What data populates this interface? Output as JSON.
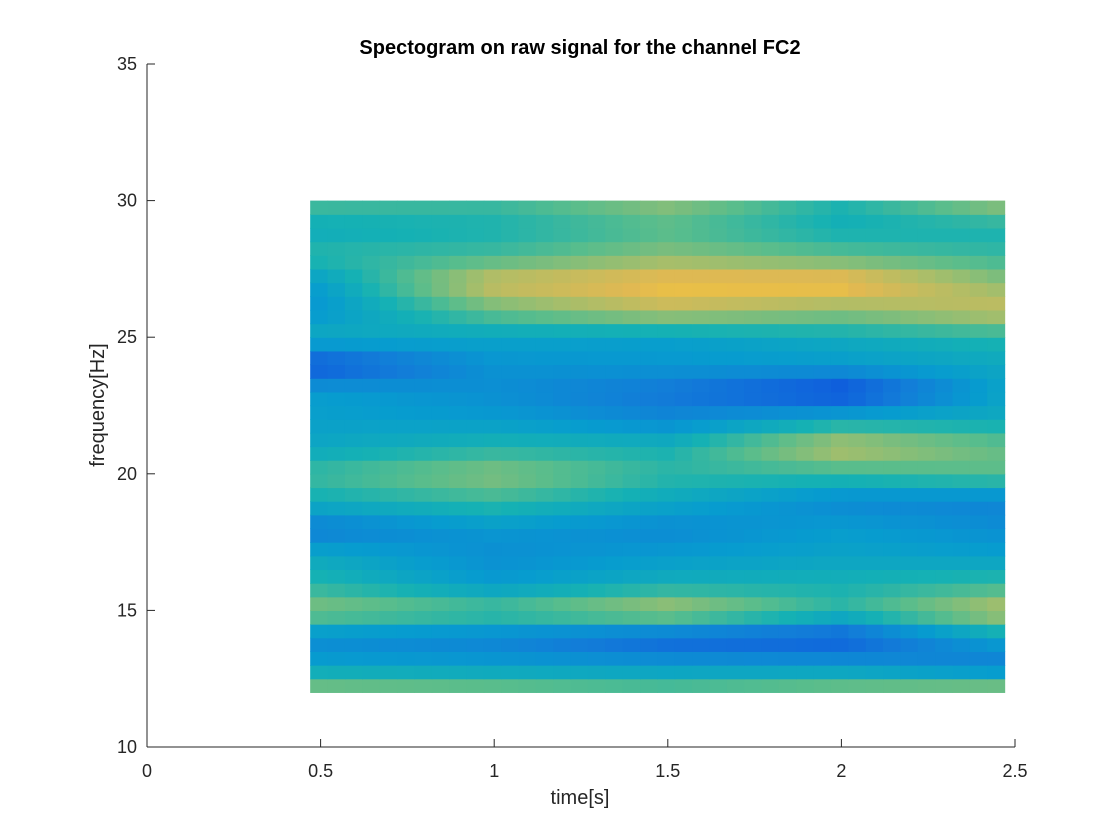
{
  "chart_data": {
    "type": "heatmap",
    "title": "Spectogram on raw signal for the channel FC2",
    "xlabel": "time[s]",
    "ylabel": "frequency[Hz]",
    "xlim": [
      0,
      2.5
    ],
    "ylim": [
      10,
      35
    ],
    "xticks": [
      0,
      0.5,
      1,
      1.5,
      2,
      2.5
    ],
    "xtick_labels": [
      "0",
      "0.5",
      "1",
      "1.5",
      "2",
      "2.5"
    ],
    "yticks": [
      10,
      15,
      20,
      25,
      30,
      35
    ],
    "ytick_labels": [
      "10",
      "15",
      "20",
      "25",
      "30",
      "35"
    ],
    "grid": false,
    "colormap": "parula",
    "x": [
      0.5,
      1.0,
      1.5,
      2.0,
      2.45
    ],
    "y": [
      12,
      13,
      14,
      15,
      16,
      17,
      18,
      19,
      20,
      21,
      22,
      23,
      24,
      25,
      26,
      27,
      28,
      29,
      30
    ],
    "values": [
      [
        0.72,
        0.7,
        0.66,
        0.72,
        0.78
      ],
      [
        0.4,
        0.38,
        0.36,
        0.35,
        0.25
      ],
      [
        0.3,
        0.27,
        0.15,
        0.12,
        0.4
      ],
      [
        0.7,
        0.62,
        0.78,
        0.55,
        0.8
      ],
      [
        0.52,
        0.38,
        0.48,
        0.5,
        0.55
      ],
      [
        0.44,
        0.32,
        0.38,
        0.42,
        0.4
      ],
      [
        0.25,
        0.36,
        0.3,
        0.38,
        0.32
      ],
      [
        0.48,
        0.56,
        0.44,
        0.3,
        0.28
      ],
      [
        0.58,
        0.7,
        0.55,
        0.56,
        0.62
      ],
      [
        0.44,
        0.52,
        0.5,
        0.8,
        0.65
      ],
      [
        0.4,
        0.38,
        0.3,
        0.45,
        0.46
      ],
      [
        0.38,
        0.32,
        0.22,
        0.05,
        0.4
      ],
      [
        0.1,
        0.34,
        0.36,
        0.38,
        0.44
      ],
      [
        0.46,
        0.42,
        0.4,
        0.46,
        0.52
      ],
      [
        0.36,
        0.65,
        0.8,
        0.72,
        0.82
      ],
      [
        0.4,
        0.84,
        0.92,
        0.94,
        0.72
      ],
      [
        0.54,
        0.58,
        0.7,
        0.62,
        0.56
      ],
      [
        0.46,
        0.5,
        0.6,
        0.48,
        0.5
      ],
      [
        0.6,
        0.58,
        0.72,
        0.52,
        0.74
      ]
    ],
    "colors": {
      "axis": "#262626",
      "background": "#ffffff"
    }
  }
}
